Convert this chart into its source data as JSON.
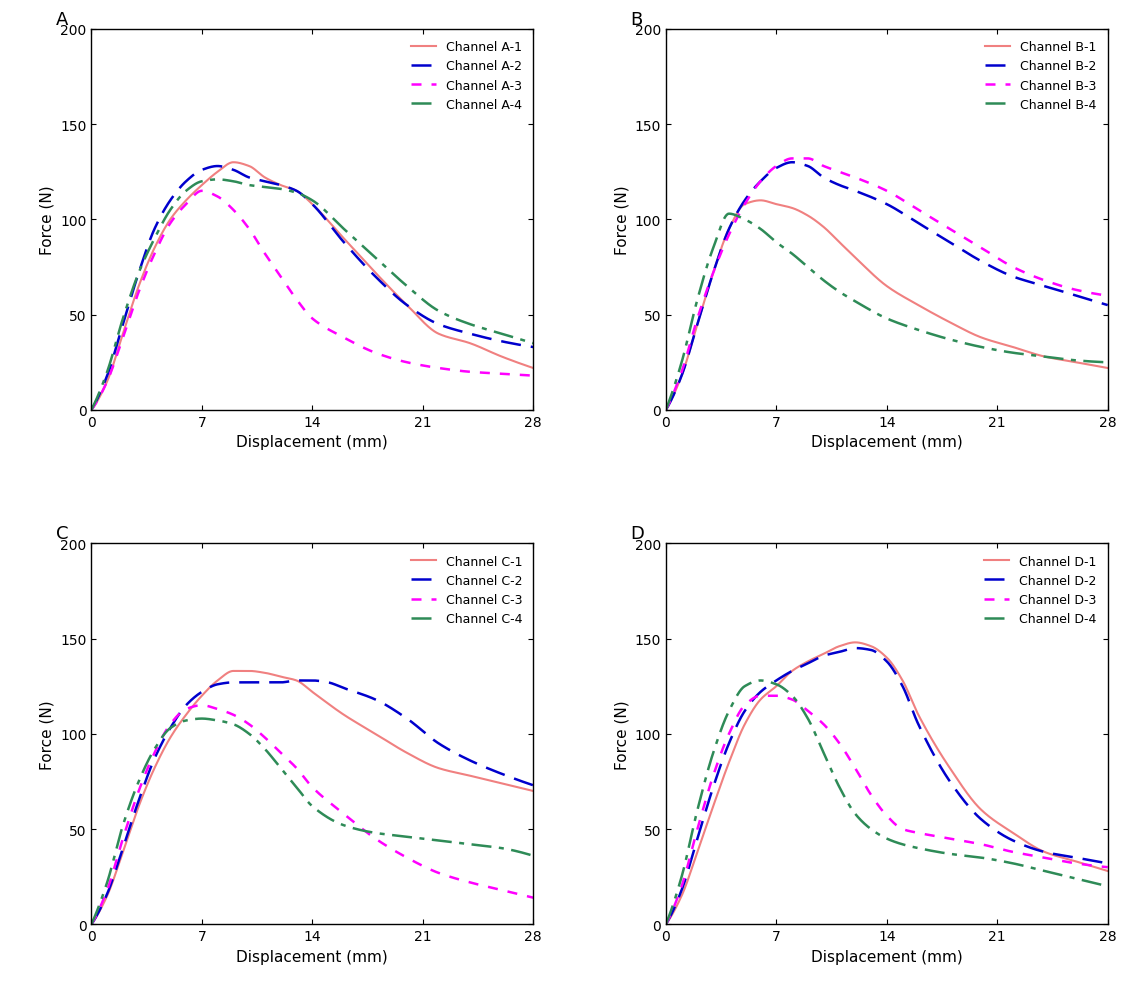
{
  "title_A": "A",
  "title_B": "B",
  "title_C": "C",
  "title_D": "D",
  "xlabel": "Displacement (mm)",
  "ylabel": "Force (N)",
  "xlim": [
    0,
    28
  ],
  "ylim": [
    0,
    200
  ],
  "xticks": [
    0,
    7,
    14,
    21,
    28
  ],
  "yticks": [
    0,
    50,
    100,
    150,
    200
  ],
  "colors": {
    "line1": "#F08080",
    "line2": "#0000CD",
    "line3": "#FF00FF",
    "line4": "#2E8B57"
  },
  "line_styles": {
    "line1": "solid",
    "line2": "dashed",
    "line3": "dashed",
    "line4": "dashdot"
  },
  "line_widths": {
    "line1": 1.5,
    "line2": 1.8,
    "line3": 1.8,
    "line4": 1.8
  },
  "dash_patterns": {
    "line2": [
      8,
      4
    ],
    "line3": [
      4,
      4
    ],
    "line4": [
      8,
      3,
      2,
      3
    ]
  }
}
